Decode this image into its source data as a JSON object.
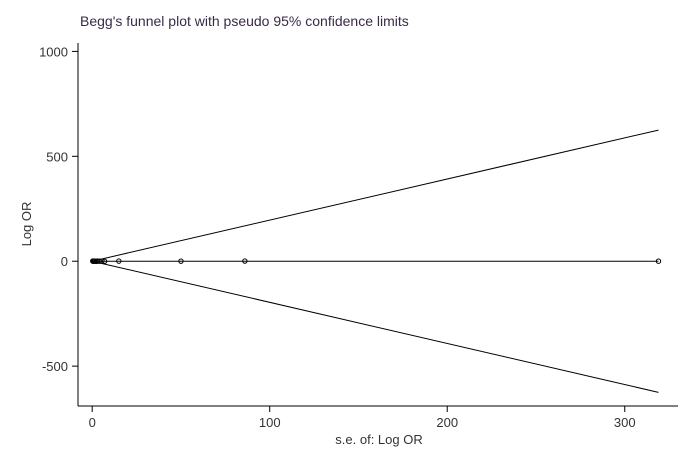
{
  "chart_data": {
    "type": "scatter",
    "title": "Begg's funnel plot with pseudo 95% confidence limits",
    "xlabel": "s.e. of: Log OR",
    "ylabel": "Log OR",
    "xlim": [
      -8,
      330
    ],
    "ylim": [
      -690,
      1040
    ],
    "x_ticks": [
      0,
      100,
      200,
      300
    ],
    "y_ticks": [
      -500,
      0,
      500,
      1000
    ],
    "x_tick_labels": [
      "0",
      "100",
      "200",
      "300"
    ],
    "y_tick_labels": [
      "-500",
      "0",
      "500",
      "1000"
    ],
    "grid": false,
    "points": [
      {
        "x": 0.3,
        "y": 0.5
      },
      {
        "x": 0.6,
        "y": -0.2
      },
      {
        "x": 1.0,
        "y": 0.8
      },
      {
        "x": 1.5,
        "y": 0.2
      },
      {
        "x": 2.2,
        "y": -0.5
      },
      {
        "x": 3.0,
        "y": 0.4
      },
      {
        "x": 4.0,
        "y": 0.1
      },
      {
        "x": 5.5,
        "y": 0.6
      },
      {
        "x": 7.0,
        "y": -0.3
      },
      {
        "x": 15.0,
        "y": 0.5
      },
      {
        "x": 50.0,
        "y": 0.3
      },
      {
        "x": 86.0,
        "y": 0.8
      },
      {
        "x": 319.0,
        "y": 0.0
      }
    ],
    "pooled_estimate": 0,
    "confidence_limits": {
      "upper": {
        "x": [
          0,
          319
        ],
        "y": [
          0,
          625
        ]
      },
      "lower": {
        "x": [
          0,
          319
        ],
        "y": [
          0,
          -625
        ]
      }
    }
  }
}
